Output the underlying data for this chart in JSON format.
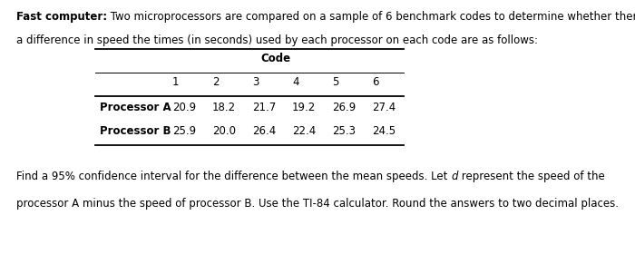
{
  "bold_prefix": "Fast computer:",
  "normal_suffix": " Two microprocessors are compared on a sample of 6 benchmark codes to determine whether there is",
  "line2": "a difference in speed the times (in seconds) used by each processor on each code are as follows:",
  "table_header": "Code",
  "col_headers": [
    "1",
    "2",
    "3",
    "4",
    "5",
    "6"
  ],
  "row_A_label": "Processor A",
  "row_B_label": "Processor B",
  "row_A": [
    "20.9",
    "18.2",
    "21.7",
    "19.2",
    "26.9",
    "27.4"
  ],
  "row_B": [
    "25.9",
    "20.0",
    "26.4",
    "22.4",
    "25.3",
    "24.5"
  ],
  "footer1_pre": "Find a 95% confidence interval for the difference between the mean speeds. Let ",
  "footer1_d": "d",
  "footer1_post": " represent the speed of the",
  "footer2": "processor A minus the speed of processor B. Use the TI-84 calculator. Round the answers to two decimal places.",
  "bg_color": "#ffffff",
  "text_color": "#000000",
  "fs": 8.5,
  "fs_table": 8.5
}
